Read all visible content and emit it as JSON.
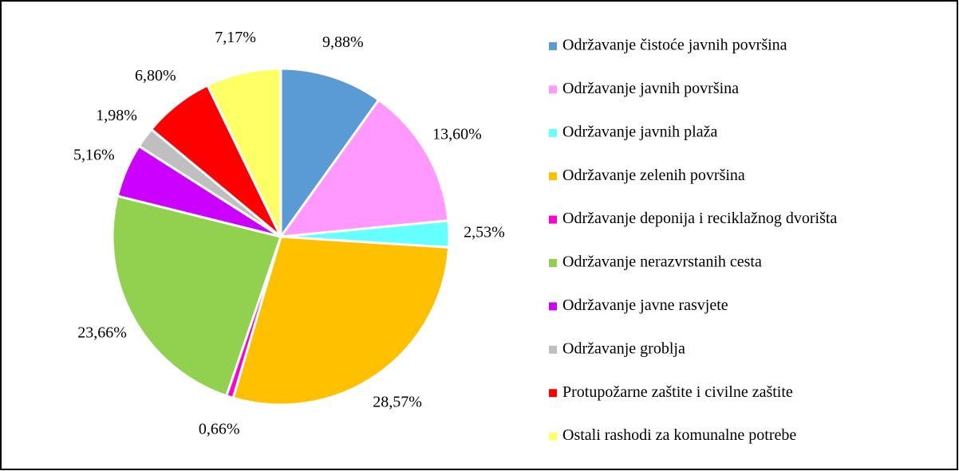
{
  "chart_data": {
    "type": "pie",
    "categories": [
      "Održavanje čistoće javnih površina",
      "Održavanje javnih površina",
      "Održavanje javnih plaža",
      "Održavanje zelenih površina",
      "Održavanje deponija i reciklažnog dvorišta",
      "Održavanje nerazvrstanih cesta",
      "Održavanje javne rasvjete",
      "Održavanje groblja",
      "Protupožarne zaštite i civilne zaštite",
      "Ostali rashodi za komunalne potrebe"
    ],
    "values": [
      9.88,
      13.6,
      2.53,
      28.57,
      0.66,
      23.66,
      5.16,
      1.98,
      6.8,
      7.17
    ],
    "value_labels": [
      "9,88%",
      "13,60%",
      "2,53%",
      "28,57%",
      "0,66%",
      "23,66%",
      "5,16%",
      "1,98%",
      "6,80%",
      "7,17%"
    ],
    "colors": [
      "#5b9bd5",
      "#ff99ff",
      "#66ffff",
      "#ffc000",
      "#ff00cc",
      "#92d050",
      "#cc00ff",
      "#bfbfbf",
      "#ff0000",
      "#ffff66"
    ],
    "legend": "right"
  }
}
